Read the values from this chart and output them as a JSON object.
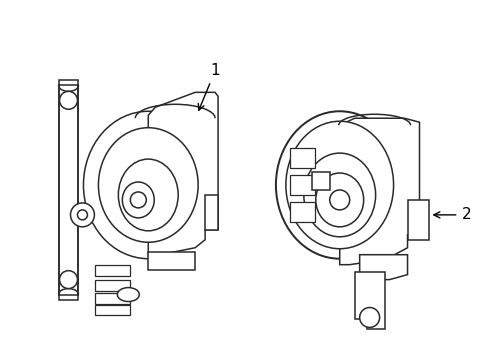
{
  "background_color": "#ffffff",
  "line_color": "#2a2a2a",
  "label_color": "#000000",
  "label_1": "1",
  "label_2": "2",
  "fig_width": 4.89,
  "fig_height": 3.6,
  "dpi": 100
}
